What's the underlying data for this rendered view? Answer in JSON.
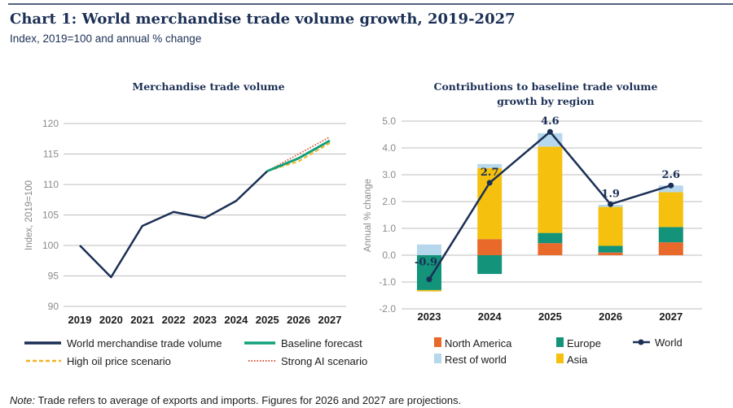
{
  "header": {
    "title": "Chart 1: World merchandise trade volume growth, 2019-2027",
    "subtitle": "Index, 2019=100 and annual % change"
  },
  "note": {
    "label": "Note:",
    "text": " Trade refers to average of exports and imports. Figures for 2026 and 2027 are projections."
  },
  "colors": {
    "navy": "#1b2f55",
    "baseline": "#12a07a",
    "high_oil": "#f0b323",
    "strong_ai": "#d9533a",
    "north_america": "#e8692a",
    "europe": "#12937a",
    "rest_of_world": "#b6d7ec",
    "asia": "#f5c10e",
    "grid": "#bdbdbd"
  },
  "chart_data": [
    {
      "type": "line",
      "title": "Merchandise trade volume",
      "ylabel": "Index, 2019=100",
      "xlabel": "",
      "ylim": [
        90,
        120
      ],
      "yticks": [
        "90",
        "95",
        "100",
        "105",
        "110",
        "115",
        "120"
      ],
      "categories": [
        "2019",
        "2020",
        "2021",
        "2022",
        "2023",
        "2024",
        "2025",
        "2026",
        "2027"
      ],
      "grid": true,
      "legend": "bottom",
      "series": [
        {
          "name": "World merchandise trade volume",
          "style": "solid",
          "x": [
            "2019",
            "2020",
            "2021",
            "2022",
            "2023",
            "2024",
            "2025"
          ],
          "values": [
            100,
            94.8,
            103.2,
            105.5,
            104.5,
            107.3,
            112.2
          ]
        },
        {
          "name": "Baseline forecast",
          "style": "solid",
          "x": [
            "2025",
            "2026",
            "2027"
          ],
          "values": [
            112.2,
            114.3,
            117.2
          ]
        },
        {
          "name": "High oil price scenario",
          "style": "dashed",
          "x": [
            "2025",
            "2026",
            "2027"
          ],
          "values": [
            112.2,
            113.8,
            116.8
          ]
        },
        {
          "name": "Strong AI scenario",
          "style": "dotted",
          "x": [
            "2025",
            "2026",
            "2027"
          ],
          "values": [
            112.2,
            115.0,
            117.8
          ]
        }
      ]
    },
    {
      "type": "bar",
      "stacked": true,
      "title": "Contributions to baseline trade volume growth by region",
      "title_lines": [
        "Contributions to baseline trade volume",
        "growth by region"
      ],
      "ylabel": "Annual % change",
      "xlabel": "",
      "ylim": [
        -2.0,
        5.0
      ],
      "yticks": [
        "-2.0",
        "-1.0",
        "0.0",
        "1.0",
        "2.0",
        "3.0",
        "4.0",
        "5.0"
      ],
      "categories": [
        "2023",
        "2024",
        "2025",
        "2026",
        "2027"
      ],
      "grid": true,
      "legend": "bottom",
      "series": [
        {
          "name": "North America",
          "values": [
            0.0,
            0.6,
            0.45,
            0.1,
            0.48
          ]
        },
        {
          "name": "Europe",
          "values": [
            -1.3,
            -0.7,
            0.38,
            0.25,
            0.57
          ]
        },
        {
          "name": "Asia",
          "values": [
            -0.05,
            2.65,
            3.22,
            1.45,
            1.3
          ]
        },
        {
          "name": "Rest of world",
          "values": [
            0.4,
            0.15,
            0.5,
            0.08,
            0.25
          ]
        }
      ],
      "line": {
        "name": "World",
        "values": [
          -0.9,
          2.7,
          4.6,
          1.9,
          2.6
        ],
        "labels": [
          "-0.9",
          "2.7",
          "4.6",
          "1.9",
          "2.6"
        ]
      }
    }
  ]
}
